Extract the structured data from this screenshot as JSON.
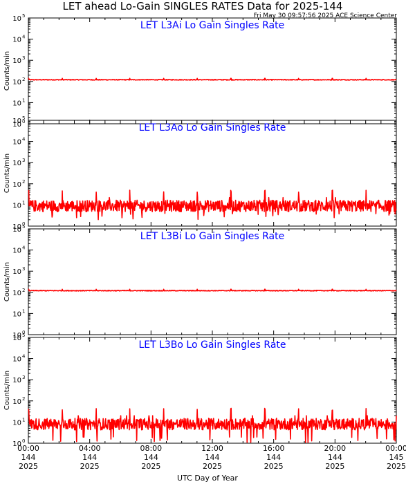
{
  "header": {
    "title": "LET ahead Lo-Gain SINGLES RATES Data for 2025-144",
    "timestamp": "Fri May 30 09:57:56 2025 ACE Science Center"
  },
  "colors": {
    "trace": "#ff0000",
    "panel_title": "#0000ff",
    "axis": "#000000",
    "background": "#ffffff"
  },
  "chart_data": [
    {
      "type": "line",
      "title": "LET L3Ai Lo Gain Singles Rate",
      "ylabel": "Counts/min",
      "yscale": "log",
      "ylim": [
        1,
        100000
      ],
      "ytick_labels": [
        "10^0",
        "10^1",
        "10^2",
        "10^3",
        "10^4",
        "10^5"
      ],
      "xlim": [
        0,
        24
      ],
      "series": [
        {
          "baseline": 120,
          "noise": "low",
          "spike_peak": 140,
          "spike_interval_hours": 2.2
        }
      ]
    },
    {
      "type": "line",
      "title": "LET L3Ao Lo Gain Singles Rate",
      "ylabel": "Counts/min",
      "yscale": "log",
      "ylim": [
        1,
        100000
      ],
      "ytick_labels": [
        "10^0",
        "10^1",
        "10^2",
        "10^3",
        "10^4",
        "10^5"
      ],
      "xlim": [
        0,
        24
      ],
      "series": [
        {
          "baseline": 9,
          "noise": "high",
          "range": [
            2,
            50
          ],
          "spike_peak": 50,
          "spike_interval_hours": 2.2
        }
      ]
    },
    {
      "type": "line",
      "title": "LET L3Bi Lo Gain Singles Rate",
      "ylabel": "Counts/min",
      "yscale": "log",
      "ylim": [
        1,
        100000
      ],
      "ytick_labels": [
        "10^0",
        "10^1",
        "10^2",
        "10^3",
        "10^4",
        "10^5"
      ],
      "xlim": [
        0,
        24
      ],
      "series": [
        {
          "baseline": 120,
          "noise": "low",
          "spike_peak": 140,
          "spike_interval_hours": 2.2
        }
      ]
    },
    {
      "type": "line",
      "title": "LET L3Bo Lo Gain Singles Rate",
      "ylabel": "Counts/min",
      "yscale": "log",
      "ylim": [
        1,
        100000
      ],
      "ytick_labels": [
        "10^0",
        "10^1",
        "10^2",
        "10^3",
        "10^4",
        "10^5"
      ],
      "xlim": [
        0,
        24
      ],
      "series": [
        {
          "baseline": 8,
          "noise": "high",
          "range": [
            1,
            50
          ],
          "spike_peak": 45,
          "spike_interval_hours": 2.2
        }
      ]
    }
  ],
  "x_axis": {
    "label": "UTC Day of Year",
    "ticks": [
      {
        "hour": 0,
        "time": "00:00",
        "day": "144",
        "year": "2025"
      },
      {
        "hour": 4,
        "time": "04:00",
        "day": "144",
        "year": "2025"
      },
      {
        "hour": 8,
        "time": "08:00",
        "day": "144",
        "year": "2025"
      },
      {
        "hour": 12,
        "time": "12:00",
        "day": "144",
        "year": "2025"
      },
      {
        "hour": 16,
        "time": "16:00",
        "day": "144",
        "year": "2025"
      },
      {
        "hour": 20,
        "time": "20:00",
        "day": "144",
        "year": "2025"
      },
      {
        "hour": 24,
        "time": "00:00",
        "day": "145",
        "year": "2025"
      }
    ]
  }
}
